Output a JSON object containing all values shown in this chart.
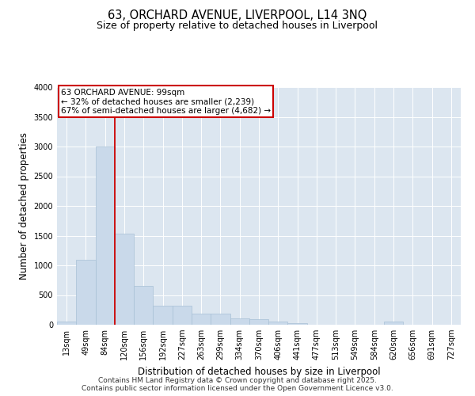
{
  "title_line1": "63, ORCHARD AVENUE, LIVERPOOL, L14 3NQ",
  "title_line2": "Size of property relative to detached houses in Liverpool",
  "xlabel": "Distribution of detached houses by size in Liverpool",
  "ylabel": "Number of detached properties",
  "bar_color": "#c9d9ea",
  "bar_edgecolor": "#a8c0d6",
  "vline_color": "#cc0000",
  "vline_x": 2.5,
  "annotation_text": "63 ORCHARD AVENUE: 99sqm\n← 32% of detached houses are smaller (2,239)\n67% of semi-detached houses are larger (4,682) →",
  "annotation_box_color": "#cc0000",
  "categories": [
    "13sqm",
    "49sqm",
    "84sqm",
    "120sqm",
    "156sqm",
    "192sqm",
    "227sqm",
    "263sqm",
    "299sqm",
    "334sqm",
    "370sqm",
    "406sqm",
    "441sqm",
    "477sqm",
    "513sqm",
    "549sqm",
    "584sqm",
    "620sqm",
    "656sqm",
    "691sqm",
    "727sqm"
  ],
  "values": [
    50,
    1100,
    3000,
    1530,
    650,
    320,
    320,
    185,
    185,
    110,
    95,
    60,
    30,
    0,
    0,
    0,
    0,
    50,
    0,
    0,
    0
  ],
  "ylim": [
    0,
    4000
  ],
  "yticks": [
    0,
    500,
    1000,
    1500,
    2000,
    2500,
    3000,
    3500,
    4000
  ],
  "background_color": "#dce6f0",
  "footer_line1": "Contains HM Land Registry data © Crown copyright and database right 2025.",
  "footer_line2": "Contains public sector information licensed under the Open Government Licence v3.0.",
  "title_fontsize": 10.5,
  "subtitle_fontsize": 9,
  "axis_label_fontsize": 8.5,
  "tick_fontsize": 7,
  "annotation_fontsize": 7.5,
  "footer_fontsize": 6.5
}
